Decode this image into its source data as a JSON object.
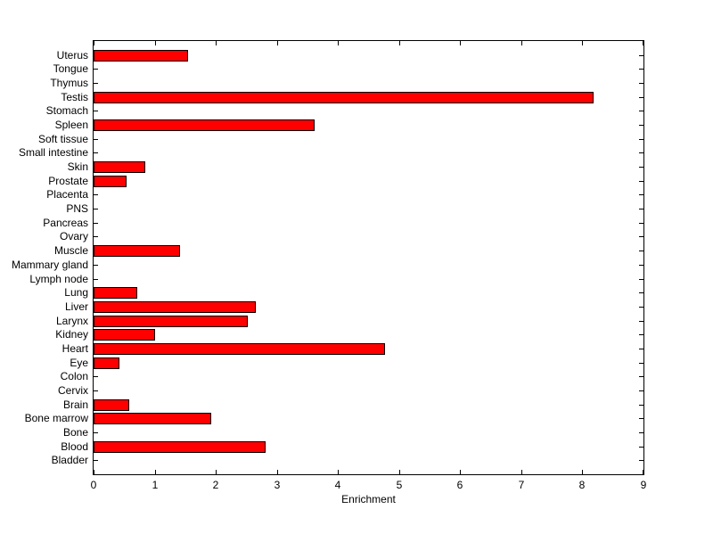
{
  "chart_data": {
    "type": "bar",
    "orientation": "horizontal",
    "title": "",
    "xlabel": "Enrichment",
    "ylabel": "",
    "xlim": [
      0,
      9
    ],
    "xticks": [
      0,
      1,
      2,
      3,
      4,
      5,
      6,
      7,
      8,
      9
    ],
    "grid": false,
    "legend": false,
    "bar_color": "#ff0000",
    "bar_edge_color": "#000000",
    "axis_color": "#000000",
    "background_color": "#ffffff",
    "categories": [
      "Uterus",
      "Tongue",
      "Thymus",
      "Testis",
      "Stomach",
      "Spleen",
      "Soft tissue",
      "Small intestine",
      "Skin",
      "Prostate",
      "Placenta",
      "PNS",
      "Pancreas",
      "Ovary",
      "Muscle",
      "Mammary gland",
      "Lymph node",
      "Lung",
      "Liver",
      "Larynx",
      "Kidney",
      "Heart",
      "Eye",
      "Colon",
      "Cervix",
      "Brain",
      "Bone marrow",
      "Bone",
      "Blood",
      "Bladder"
    ],
    "values": [
      1.54,
      0,
      0,
      8.19,
      0,
      3.62,
      0,
      0,
      0.84,
      0.54,
      0,
      0,
      0,
      0,
      1.41,
      0,
      0,
      0.71,
      2.66,
      2.52,
      1.0,
      4.77,
      0.42,
      0,
      0,
      0.58,
      1.92,
      0,
      2.81,
      0
    ]
  }
}
